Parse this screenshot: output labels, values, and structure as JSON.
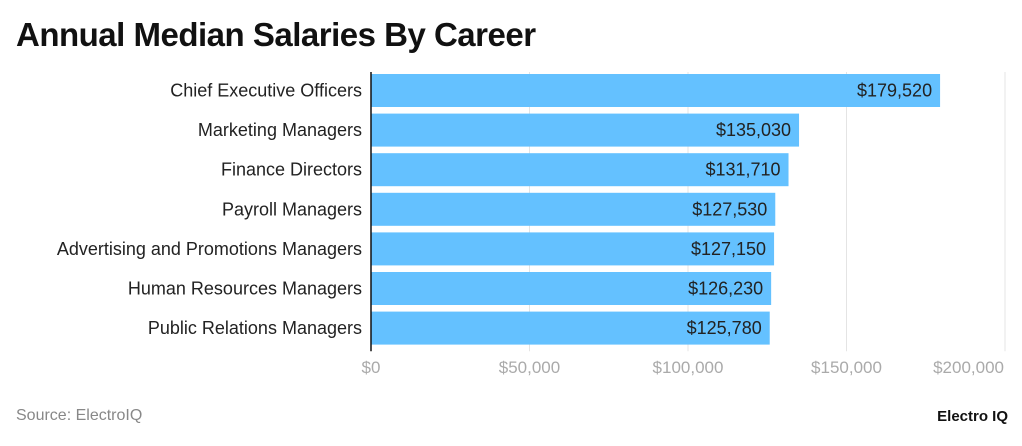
{
  "title": "Annual Median Salaries By Career",
  "source": "Source: ElectroIQ",
  "brand": "Electro IQ",
  "chart_data": {
    "type": "bar",
    "orientation": "horizontal",
    "title": "Annual Median Salaries By Career",
    "categories": [
      "Chief Executive Officers",
      "Marketing Managers",
      "Finance Directors",
      "Payroll Managers",
      "Advertising and Promotions Managers",
      "Human Resources Managers",
      "Public Relations Managers"
    ],
    "values": [
      179520,
      135030,
      131710,
      127530,
      127150,
      126230,
      125780
    ],
    "data_labels": [
      "$179,520",
      "$135,030",
      "$131,710",
      "$127,530",
      "$127,150",
      "$126,230",
      "$125,780"
    ],
    "xlim": [
      0,
      200000
    ],
    "x_ticks": [
      0,
      50000,
      100000,
      150000,
      200000
    ],
    "x_tick_labels": [
      "$0",
      "$50,000",
      "$100,000",
      "$150,000",
      "$200,000"
    ],
    "grid": true,
    "bar_color": "#64c1ff"
  }
}
